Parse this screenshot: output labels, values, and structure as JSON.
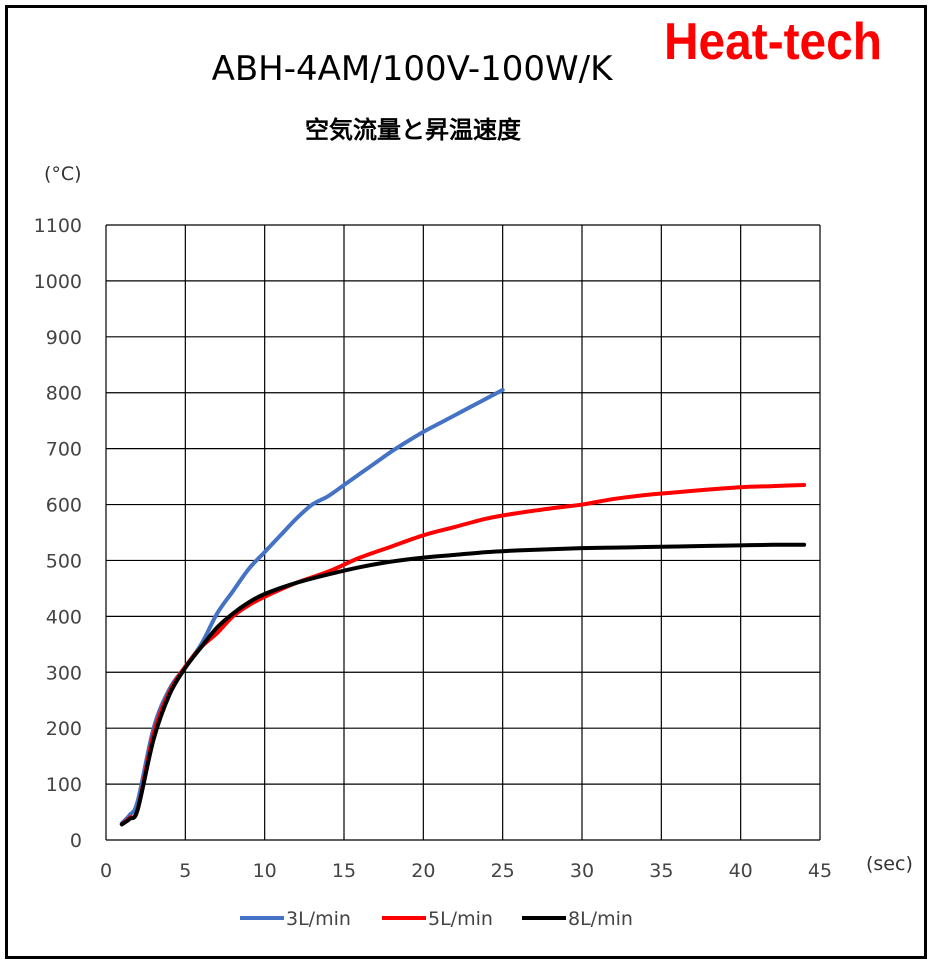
{
  "brand": {
    "text": "Heat-tech",
    "color": "#ff0000"
  },
  "chart_data": {
    "type": "line",
    "title": "ABH-4AM/100V-100W/K",
    "subtitle": "空気流量と昇温速度",
    "y_unit": "(°C)",
    "x_unit": "(sec)",
    "xlim": [
      0,
      45
    ],
    "ylim": [
      0,
      1100
    ],
    "x_ticks": [
      0,
      5,
      10,
      15,
      20,
      25,
      30,
      35,
      40,
      45
    ],
    "y_ticks": [
      0,
      100,
      200,
      300,
      400,
      500,
      600,
      700,
      800,
      900,
      1000,
      1100
    ],
    "grid": true,
    "legend_position": "bottom",
    "series": [
      {
        "name": "3L/min",
        "color": "#4472c4",
        "x": [
          1,
          1.5,
          2,
          3,
          4,
          5,
          6,
          7,
          8,
          9,
          10,
          11,
          12,
          13,
          14,
          15,
          16,
          17,
          18,
          19,
          20,
          21,
          22,
          23,
          24,
          25
        ],
        "y": [
          30,
          45,
          70,
          200,
          270,
          310,
          350,
          405,
          445,
          485,
          515,
          545,
          575,
          600,
          615,
          635,
          655,
          675,
          695,
          713,
          730,
          745,
          760,
          775,
          790,
          805
        ]
      },
      {
        "name": "5L/min",
        "color": "#ff0000",
        "x": [
          1,
          1.5,
          2,
          3,
          4,
          5,
          6,
          7,
          8,
          9,
          10,
          12,
          14,
          16,
          18,
          20,
          22,
          24,
          26,
          28,
          30,
          32,
          34,
          36,
          38,
          40,
          42,
          44
        ],
        "y": [
          28,
          40,
          55,
          190,
          265,
          310,
          345,
          370,
          400,
          420,
          435,
          460,
          480,
          505,
          525,
          545,
          560,
          575,
          585,
          593,
          600,
          610,
          617,
          622,
          627,
          631,
          633,
          635
        ]
      },
      {
        "name": "8L/min",
        "color": "#000000",
        "x": [
          1,
          1.5,
          2,
          3,
          4,
          5,
          6,
          7,
          8,
          9,
          10,
          12,
          14,
          16,
          18,
          20,
          22,
          24,
          26,
          28,
          30,
          32,
          34,
          36,
          38,
          40,
          42,
          44
        ],
        "y": [
          28,
          38,
          55,
          180,
          260,
          308,
          345,
          380,
          405,
          425,
          440,
          460,
          475,
          488,
          498,
          505,
          510,
          515,
          518,
          520,
          522,
          523,
          524,
          525,
          526,
          527,
          528,
          528
        ]
      }
    ]
  }
}
